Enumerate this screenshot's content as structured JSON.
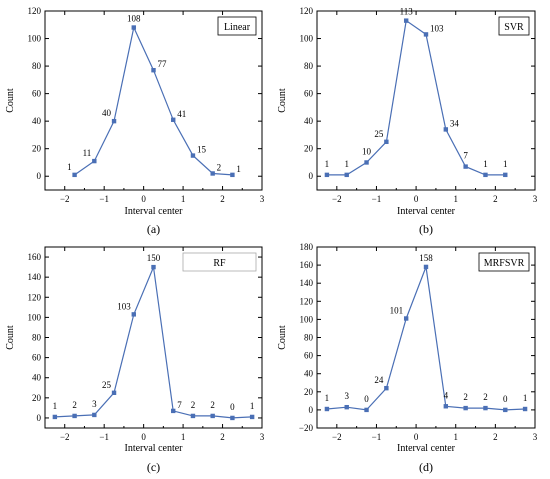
{
  "chart_data": [
    {
      "type": "line",
      "panel": "(a)",
      "legend": "Linear",
      "xlabel": "Interval center",
      "ylabel": "Count",
      "xlim": [
        -2.5,
        3
      ],
      "ylim": [
        -10,
        120
      ],
      "xticks": [
        -2,
        -1,
        0,
        1,
        2,
        3
      ],
      "yticks": [
        0,
        20,
        40,
        60,
        80,
        100,
        120
      ],
      "x": [
        -1.75,
        -1.25,
        -0.75,
        -0.25,
        0.25,
        0.75,
        1.25,
        1.75,
        2.25
      ],
      "values": [
        1,
        11,
        40,
        108,
        77,
        41,
        15,
        2,
        1
      ],
      "labels": [
        "1",
        "11",
        "40",
        "108",
        "77",
        "41",
        "15",
        "2",
        "1"
      ]
    },
    {
      "type": "line",
      "panel": "(b)",
      "legend": "SVR",
      "xlabel": "Interval center",
      "ylabel": "Count",
      "xlim": [
        -2.5,
        3
      ],
      "ylim": [
        -10,
        120
      ],
      "xticks": [
        -2,
        -1,
        0,
        1,
        2,
        3
      ],
      "yticks": [
        0,
        20,
        40,
        60,
        80,
        100,
        120
      ],
      "x": [
        -2.25,
        -1.75,
        -1.25,
        -0.75,
        -0.25,
        0.25,
        0.75,
        1.25,
        1.75,
        2.25
      ],
      "values": [
        1,
        1,
        10,
        25,
        113,
        103,
        34,
        7,
        1,
        1
      ],
      "labels": [
        "1",
        "1",
        "10",
        "25",
        "113",
        "103",
        "34",
        "7",
        "1",
        "1"
      ]
    },
    {
      "type": "line",
      "panel": "(c)",
      "legend": "RF",
      "xlabel": "Interval center",
      "ylabel": "Count",
      "xlim": [
        -2.5,
        3
      ],
      "ylim": [
        -10,
        170
      ],
      "xticks": [
        -2,
        -1,
        0,
        1,
        2,
        3
      ],
      "yticks": [
        0,
        20,
        40,
        60,
        80,
        100,
        120,
        140,
        160
      ],
      "x": [
        -2.25,
        -1.75,
        -1.25,
        -0.75,
        -0.25,
        0.25,
        0.75,
        1.25,
        1.75,
        2.25,
        2.75
      ],
      "values": [
        1,
        2,
        3,
        25,
        103,
        150,
        7,
        2,
        2,
        0,
        1
      ],
      "labels": [
        "1",
        "2",
        "3",
        "25",
        "103",
        "150",
        "7",
        "2",
        "2",
        "0",
        "1"
      ]
    },
    {
      "type": "line",
      "panel": "(d)",
      "legend": "MRFSVR",
      "xlabel": "Interval center",
      "ylabel": "Count",
      "xlim": [
        -2.5,
        3
      ],
      "ylim": [
        -20,
        180
      ],
      "xticks": [
        -2,
        -1,
        0,
        1,
        2,
        3
      ],
      "yticks": [
        -20,
        0,
        20,
        40,
        60,
        80,
        100,
        120,
        140,
        160,
        180
      ],
      "x": [
        -2.25,
        -1.75,
        -1.25,
        -0.75,
        -0.25,
        0.25,
        0.75,
        1.25,
        1.75,
        2.25,
        2.75
      ],
      "values": [
        1,
        3,
        0,
        24,
        101,
        158,
        4,
        2,
        2,
        0,
        1
      ],
      "labels": [
        "1",
        "3",
        "0",
        "24",
        "101",
        "158",
        "4",
        "2",
        "2",
        "0",
        "1"
      ]
    }
  ],
  "colors": {
    "series": "#4a6fb5",
    "axis": "#000000"
  }
}
